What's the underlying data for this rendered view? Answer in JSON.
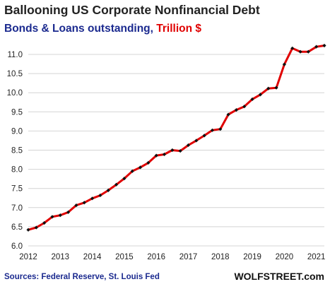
{
  "header": {
    "title": "Ballooning US Corporate Nonfinancial Debt",
    "subtitle_main": "Bonds & Loans outstanding, ",
    "subtitle_unit": "Trillion $"
  },
  "footer": {
    "source": "Sources: Federal Reserve, St. Louis Fed",
    "brand": "WOLFSTREET.com"
  },
  "chart_data": {
    "type": "line",
    "title": "Ballooning US Corporate Nonfinancial Debt",
    "subtitle": "Bonds & Loans outstanding, Trillion $",
    "xlabel": "",
    "ylabel": "",
    "xlim": [
      2012,
      2021.25
    ],
    "ylim": [
      6.0,
      11.0
    ],
    "x_ticks": [
      "2012",
      "2013",
      "2014",
      "2015",
      "2016",
      "2017",
      "2018",
      "2019",
      "2020",
      "2021"
    ],
    "y_ticks": [
      "6.0",
      "6.5",
      "7.0",
      "7.5",
      "8.0",
      "8.5",
      "9.0",
      "9.5",
      "10.0",
      "10.5",
      "11.0"
    ],
    "grid": "horizontal",
    "line_color": "#e00000",
    "marker_color": "#111111",
    "series": [
      {
        "x": [
          2012.0,
          2012.25,
          2012.5,
          2012.75,
          2013.0,
          2013.25,
          2013.5,
          2013.75,
          2014.0,
          2014.25,
          2014.5,
          2014.75,
          2015.0,
          2015.25,
          2015.5,
          2015.75,
          2016.0,
          2016.25,
          2016.5,
          2016.75,
          2017.0,
          2017.25,
          2017.5,
          2017.75,
          2018.0,
          2018.25,
          2018.5,
          2018.75,
          2019.0,
          2019.25,
          2019.5,
          2019.75,
          2020.0,
          2020.25,
          2020.5,
          2020.75,
          2021.0,
          2021.25
        ],
        "values": [
          6.42,
          6.48,
          6.6,
          6.76,
          6.8,
          6.88,
          7.06,
          7.13,
          7.24,
          7.32,
          7.45,
          7.6,
          7.76,
          7.95,
          8.05,
          8.17,
          8.36,
          8.39,
          8.5,
          8.48,
          8.63,
          8.75,
          8.88,
          9.02,
          9.05,
          9.43,
          9.55,
          9.64,
          9.83,
          9.95,
          10.11,
          10.13,
          10.74,
          11.16,
          11.07,
          11.07,
          11.2,
          11.23
        ]
      }
    ]
  }
}
